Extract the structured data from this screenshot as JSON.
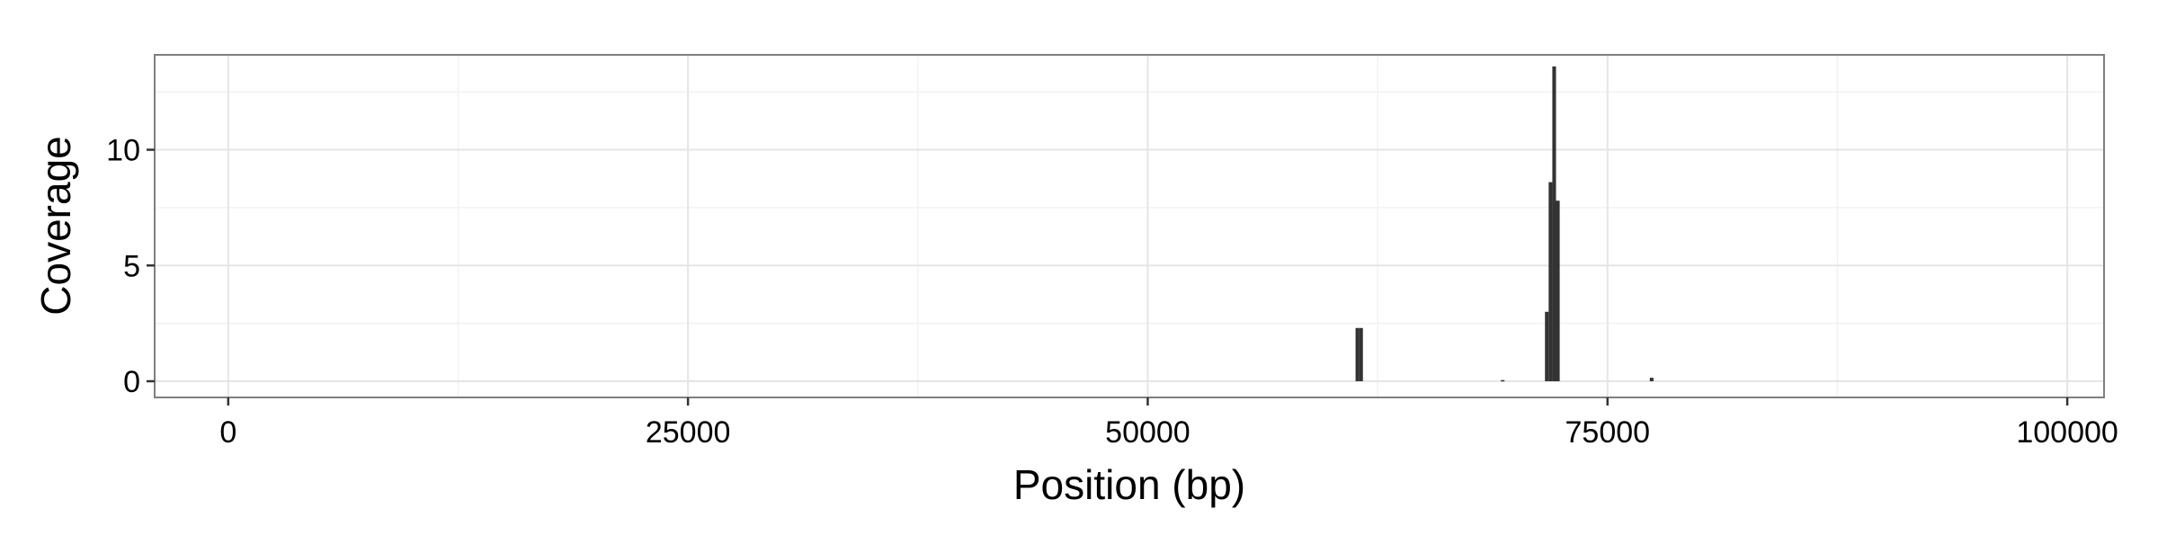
{
  "chart_data": {
    "type": "bar",
    "title": "",
    "xlabel": "Position (bp)",
    "ylabel": "Coverage",
    "xlim": [
      -4000,
      102000
    ],
    "ylim": [
      -0.7,
      14.1
    ],
    "x_ticks": [
      0,
      25000,
      50000,
      75000,
      100000
    ],
    "x_tick_labels": [
      "0",
      "25000",
      "50000",
      "75000",
      "100000"
    ],
    "y_ticks": [
      0,
      5,
      10
    ],
    "y_tick_labels": [
      "0",
      "5",
      "10"
    ],
    "grid": true,
    "legend": "none",
    "bar_width": 200,
    "series": [
      {
        "x": [
          61400,
          61600,
          69300,
          71700,
          71900,
          72100,
          72300,
          77400
        ],
        "values": [
          2.3,
          2.3,
          0.05,
          3.0,
          8.6,
          13.6,
          7.8,
          0.15
        ]
      }
    ],
    "colors": {
      "bar": "#333333",
      "grid_major": "#e5e5e5",
      "grid_minor": "#f2f2f2",
      "panel_border": "#7f7f7f",
      "tick": "#333333"
    }
  }
}
